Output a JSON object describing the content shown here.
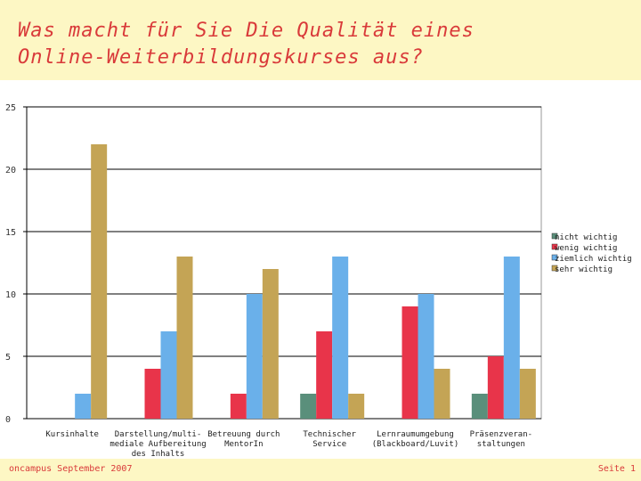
{
  "title_line1": "Was macht für Sie Die Qualität eines",
  "title_line2": "Online-Weiterbildungskurses aus?",
  "footer": {
    "left": "oncampus September 2007",
    "right": "Seite 1"
  },
  "chart_data": {
    "type": "bar",
    "categories": [
      [
        "Kursinhalte"
      ],
      [
        "Darstellung/multi-",
        "mediale Aufbereitung",
        "des Inhalts"
      ],
      [
        "Betreuung durch",
        "MentorIn"
      ],
      [
        "Technischer",
        "Service"
      ],
      [
        "Lernraumumgebung",
        "(Blackboard/Luvit)"
      ],
      [
        "Präsenzveran-",
        "staltungen"
      ]
    ],
    "series": [
      {
        "name": "nicht wichtig",
        "color": "#5a8f7b",
        "values": [
          0,
          0,
          0,
          2,
          0,
          2
        ]
      },
      {
        "name": "wenig wichtig",
        "color": "#e8344a",
        "values": [
          0,
          4,
          2,
          7,
          9,
          5
        ]
      },
      {
        "name": "ziemlich wichtig",
        "color": "#6ab0ea",
        "values": [
          2,
          7,
          10,
          13,
          10,
          13
        ]
      },
      {
        "name": "sehr wichtig",
        "color": "#c4a455",
        "values": [
          22,
          13,
          12,
          2,
          4,
          4
        ]
      }
    ],
    "yticks": [
      0,
      5,
      10,
      15,
      20,
      25
    ],
    "ylim": [
      0,
      25
    ],
    "grid": true,
    "legend_position": "right"
  }
}
